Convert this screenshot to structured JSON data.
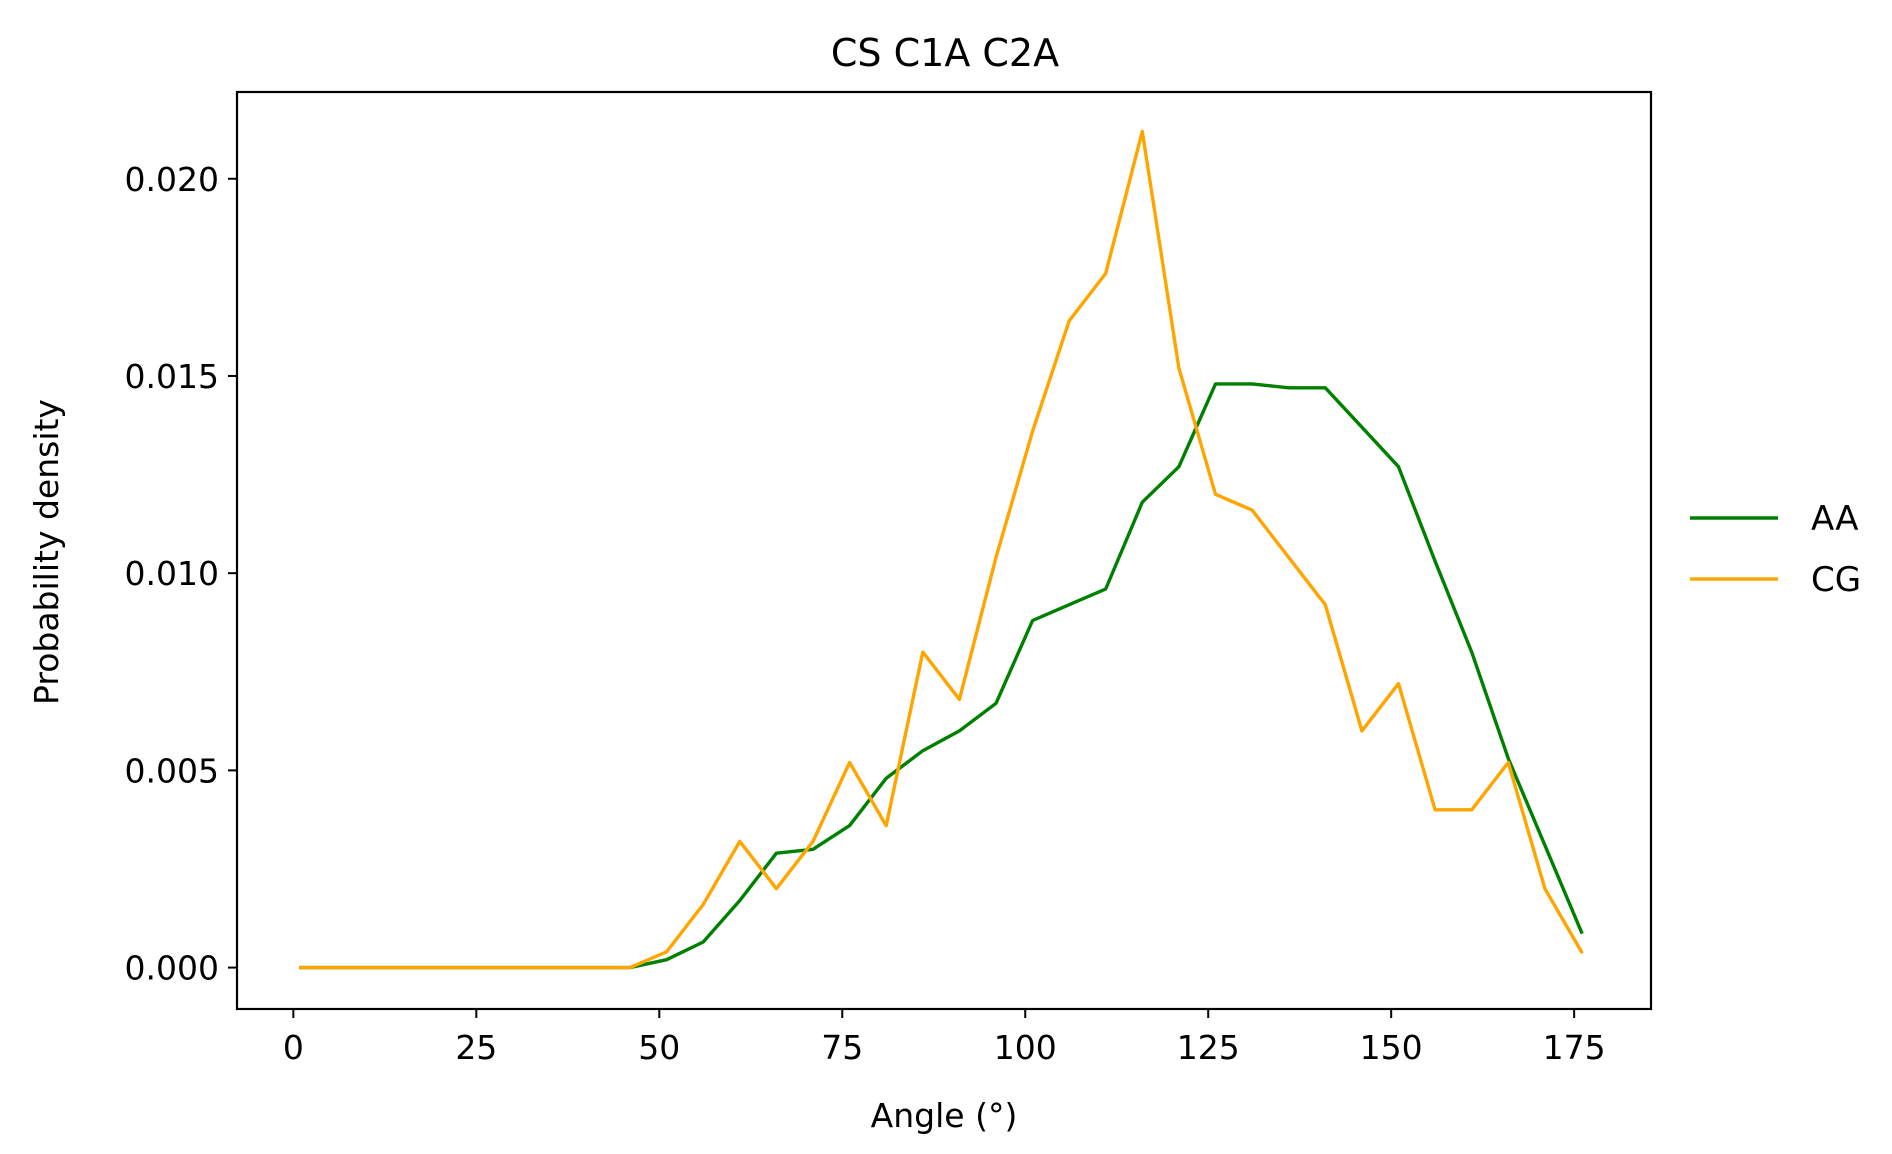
{
  "chart_data": {
    "type": "line",
    "title": "CS C1A C2A",
    "xlabel": "Angle (°)",
    "ylabel": "Probability density",
    "xlim": [
      -7.7,
      185.5
    ],
    "ylim": [
      -0.00105,
      0.0222
    ],
    "xticks": [
      0,
      25,
      50,
      75,
      100,
      125,
      150,
      175
    ],
    "xtick_labels": [
      "0",
      "25",
      "50",
      "75",
      "100",
      "125",
      "150",
      "175"
    ],
    "yticks": [
      0,
      0.005,
      0.01,
      0.015,
      0.02
    ],
    "ytick_labels": [
      "0.000",
      "0.005",
      "0.010",
      "0.015",
      "0.020"
    ],
    "grid": false,
    "legend_position": "outside-right",
    "x": [
      1,
      6,
      11,
      16,
      21,
      26,
      31,
      36,
      41,
      46,
      51,
      56,
      61,
      66,
      71,
      76,
      81,
      86,
      91,
      96,
      101,
      106,
      111,
      116,
      121,
      126,
      131,
      136,
      141,
      146,
      151,
      156,
      161,
      166,
      171,
      176
    ],
    "series": [
      {
        "name": "AA",
        "color": "#008000",
        "values": [
          0,
          0,
          0,
          0,
          0,
          0,
          0,
          0,
          0,
          0,
          0.0002,
          0.00065,
          0.0017,
          0.0029,
          0.003,
          0.0036,
          0.0048,
          0.0055,
          0.006,
          0.0067,
          0.0088,
          0.0092,
          0.0096,
          0.0118,
          0.0127,
          0.0148,
          0.0148,
          0.0147,
          0.0147,
          0.0137,
          0.0127,
          0.0103,
          0.008,
          0.0053,
          0.0031,
          0.0009
        ]
      },
      {
        "name": "CG",
        "color": "#FFA500",
        "values": [
          0,
          0,
          0,
          0,
          0,
          0,
          0,
          0,
          0,
          0,
          0.0004,
          0.0016,
          0.0032,
          0.002,
          0.0032,
          0.0052,
          0.0036,
          0.008,
          0.0068,
          0.0104,
          0.0136,
          0.0164,
          0.0176,
          0.0212,
          0.0152,
          0.012,
          0.0116,
          0.0104,
          0.0092,
          0.006,
          0.0072,
          0.004,
          0.004,
          0.0052,
          0.002,
          0.0004
        ]
      }
    ]
  }
}
